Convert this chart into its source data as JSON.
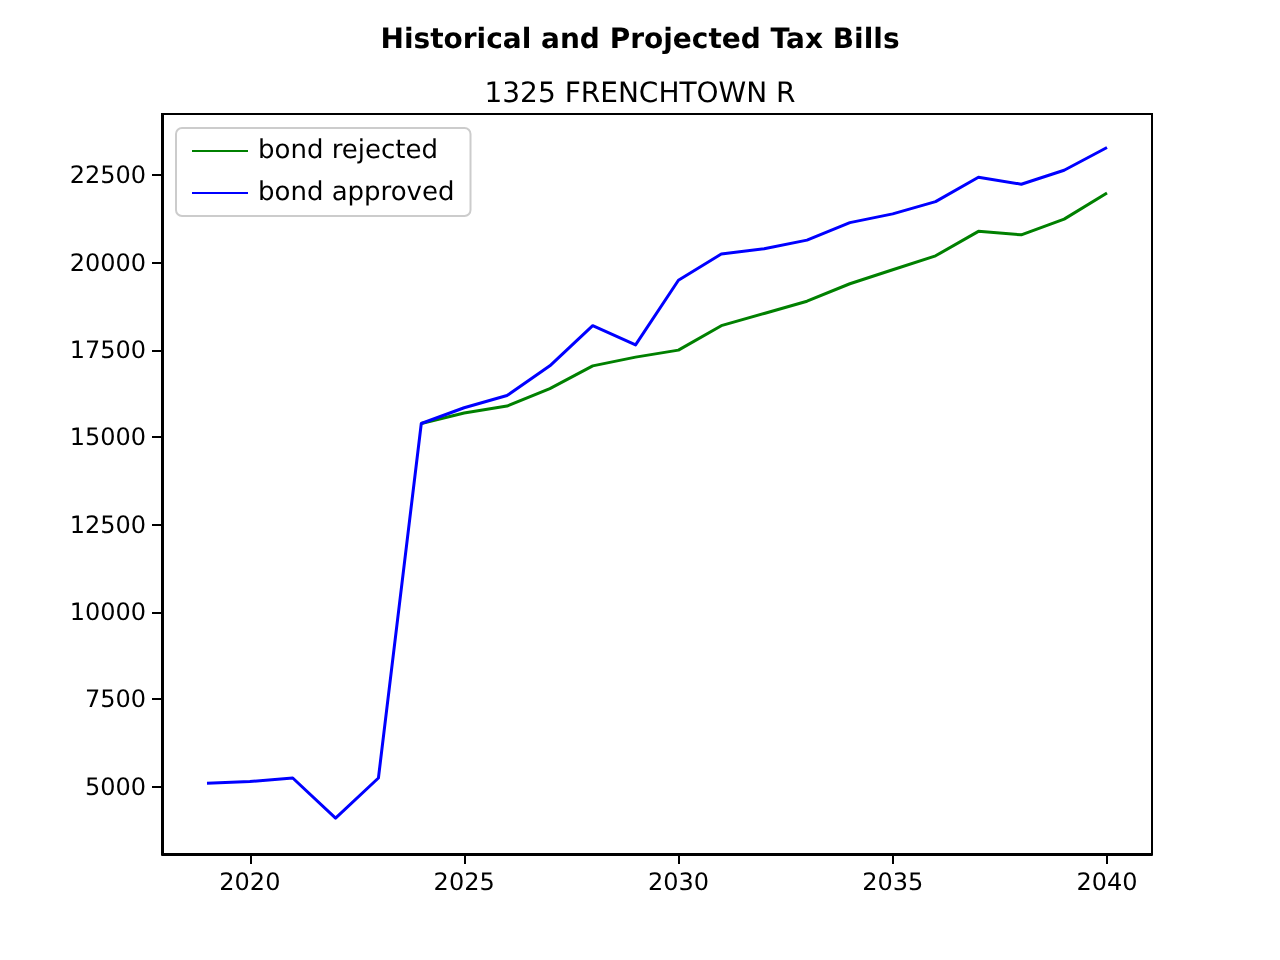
{
  "chart_data": {
    "type": "line",
    "title": "Historical and Projected Tax Bills",
    "subtitle": "1325 FRENCHTOWN R",
    "x": [
      2019,
      2020,
      2021,
      2022,
      2023,
      2024,
      2025,
      2026,
      2027,
      2028,
      2029,
      2030,
      2031,
      2032,
      2033,
      2034,
      2035,
      2036,
      2037,
      2038,
      2039,
      2040
    ],
    "series": [
      {
        "name": "bond rejected",
        "color": "#008000",
        "values": [
          null,
          null,
          null,
          null,
          null,
          15400,
          15700,
          15900,
          16400,
          17050,
          17300,
          17500,
          18200,
          18550,
          18900,
          19400,
          19800,
          20200,
          20900,
          20800,
          21250,
          22000
        ]
      },
      {
        "name": "bond approved",
        "color": "#0000ff",
        "values": [
          5100,
          5150,
          5250,
          4100,
          5250,
          15400,
          15850,
          16200,
          17050,
          18200,
          17650,
          19500,
          20250,
          20400,
          20650,
          21150,
          21400,
          21750,
          22450,
          22250,
          22650,
          23300
        ]
      }
    ],
    "xlim": [
      2017.95,
      2041.05
    ],
    "xticks": [
      2020,
      2025,
      2030,
      2035,
      2040
    ],
    "ylim": [
      3075,
      24260
    ],
    "yticks": [
      5000,
      7500,
      10000,
      12500,
      15000,
      17500,
      20000,
      22500
    ],
    "grid": false,
    "legend": "top left",
    "marker": "none",
    "line_style": "solid"
  }
}
